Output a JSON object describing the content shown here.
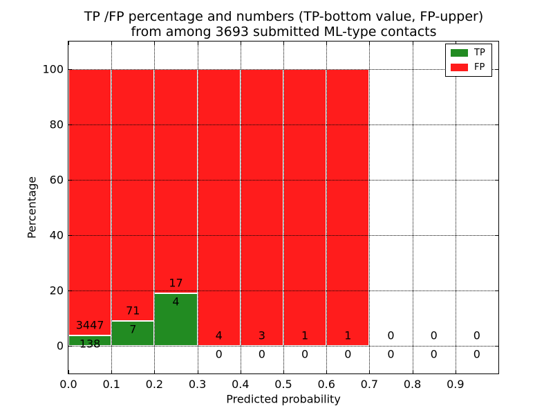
{
  "title": {
    "line1": "TP /FP percentage and numbers (TP-bottom value, FP-upper)",
    "line2": "from among 3693 submitted ML-type contacts"
  },
  "chart_data": {
    "type": "bar",
    "stacked": true,
    "normalized": "percent",
    "title": "TP /FP percentage and numbers (TP-bottom value, FP-upper)\nfrom among 3693 submitted ML-type contacts",
    "xlabel": "Predicted probability",
    "ylabel": "Percentage",
    "xlim": [
      0.0,
      1.0
    ],
    "ylim": [
      -10,
      110
    ],
    "bin_width": 0.1,
    "bin_starts": [
      0.0,
      0.1,
      0.2,
      0.3,
      0.4,
      0.5,
      0.6,
      0.7,
      0.8,
      0.9
    ],
    "xticks": [
      "0.0",
      "0.1",
      "0.2",
      "0.3",
      "0.4",
      "0.5",
      "0.6",
      "0.7",
      "0.8",
      "0.9"
    ],
    "yticks": [
      0,
      20,
      40,
      60,
      80,
      100
    ],
    "series": [
      {
        "name": "TP",
        "color": "#228B22",
        "counts": [
          138,
          7,
          4,
          0,
          0,
          0,
          0,
          0,
          0,
          0
        ]
      },
      {
        "name": "FP",
        "color": "#FF1C1C",
        "counts": [
          3447,
          71,
          17,
          4,
          3,
          1,
          1,
          0,
          0,
          0
        ]
      }
    ],
    "tp_percent_by_bin": [
      3.85,
      8.97,
      19.05,
      0,
      0,
      0,
      0,
      0,
      0,
      0
    ],
    "legend": {
      "position": "upper right",
      "entries": [
        {
          "label": "TP",
          "color": "#228B22"
        },
        {
          "label": "FP",
          "color": "#FF1C1C"
        }
      ]
    },
    "grid": {
      "style": "dotted",
      "color": "#000000",
      "over_bars": true
    },
    "annotation_note": "FP count shown above stack boundary, TP count below it, per bin"
  }
}
